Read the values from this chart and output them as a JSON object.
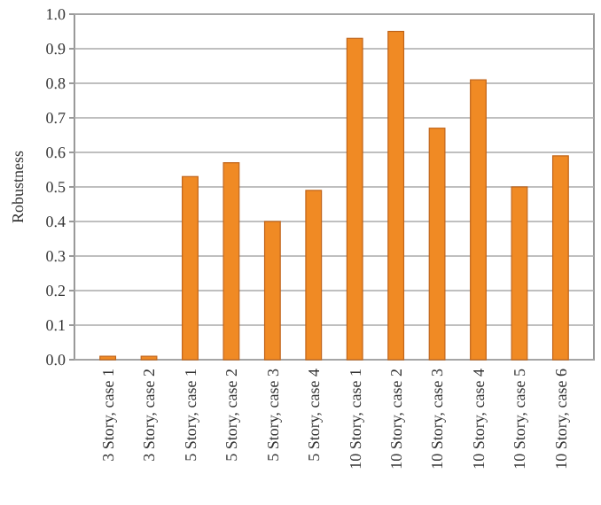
{
  "chart_data": {
    "type": "bar",
    "ylabel": "Robustness",
    "categories": [
      "3 Story, case 1",
      "3 Story, case 2",
      "5 Story, case 1",
      "5 Story, case 2",
      "5 Story, case 3",
      "5 Story, case 4",
      "10 Story, case 1",
      "10 Story, case 2",
      "10 Story, case 3",
      "10 Story, case 4",
      "10 Story, case 5",
      "10 Story, case 6"
    ],
    "values": [
      0.01,
      0.01,
      0.53,
      0.57,
      0.4,
      0.49,
      0.93,
      0.95,
      0.67,
      0.81,
      0.5,
      0.59
    ],
    "color": "#f08a24",
    "ylim": [
      0,
      1
    ],
    "yticks": [
      {
        "value": 0,
        "label": "0.0"
      },
      {
        "value": 0.1,
        "label": "0.1"
      },
      {
        "value": 0.2,
        "label": "0.2"
      },
      {
        "value": 0.3,
        "label": "0.3"
      },
      {
        "value": 0.4,
        "label": "0.4"
      },
      {
        "value": 0.5,
        "label": "0.5"
      },
      {
        "value": 0.6,
        "label": "0.6"
      },
      {
        "value": 0.7,
        "label": "0.7"
      },
      {
        "value": 0.8,
        "label": "0.8"
      },
      {
        "value": 0.9,
        "label": "0.9"
      },
      {
        "value": 1,
        "label": "1.0"
      }
    ],
    "grid": "y"
  }
}
